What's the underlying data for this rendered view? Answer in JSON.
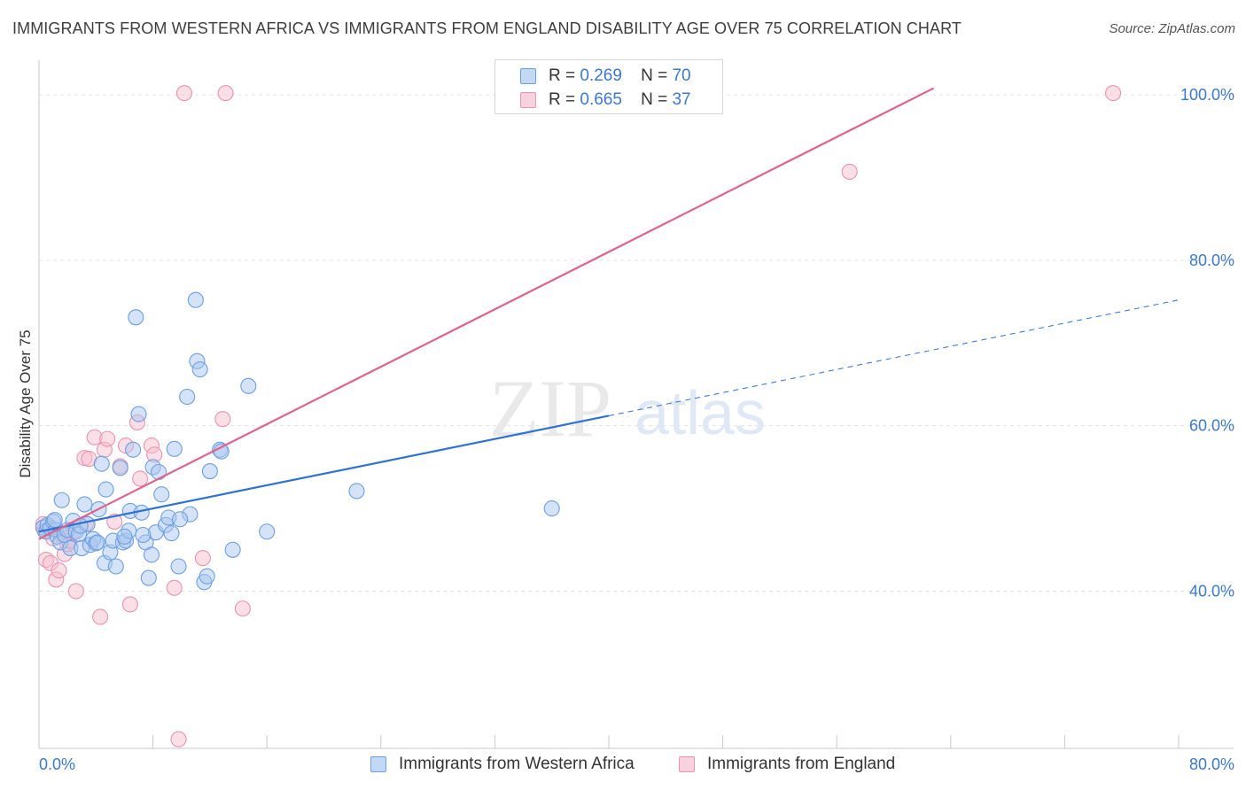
{
  "title": "IMMIGRANTS FROM WESTERN AFRICA VS IMMIGRANTS FROM ENGLAND DISABILITY AGE OVER 75 CORRELATION CHART",
  "source": "Source: ZipAtlas.com",
  "watermark": {
    "zip": "ZIP",
    "atlas": "atlas"
  },
  "legend": {
    "r_label": "R =",
    "n_label": "N =",
    "items": [
      {
        "r": "0.269",
        "n": "70"
      },
      {
        "r": "0.665",
        "n": "37"
      }
    ]
  },
  "colors": {
    "blue_fill": "#aac8ef",
    "blue_stroke": "#6d9fe0",
    "blue_line": "#2f72d4",
    "pink_fill": "#f6bfd0",
    "pink_stroke": "#e993b0",
    "pink_line": "#e0628e",
    "tick_label": "#3b78d1"
  },
  "chart_data": {
    "type": "scatter",
    "title": "IMMIGRANTS FROM WESTERN AFRICA VS IMMIGRANTS FROM ENGLAND DISABILITY AGE OVER 75 CORRELATION CHART",
    "xlabel": "",
    "ylabel": "Disability Age Over 75",
    "xlim": [
      0,
      80
    ],
    "ylim": [
      21,
      103
    ],
    "x_tick_labels": [
      "0.0%",
      "80.0%"
    ],
    "y_ticks": [
      40,
      60,
      80,
      100
    ],
    "y_tick_labels": [
      "40.0%",
      "60.0%",
      "80.0%",
      "100.0%"
    ],
    "series": [
      {
        "name": "Immigrants from Western Africa",
        "r": 0.269,
        "n": 70,
        "points": [
          [
            0.3,
            47.7
          ],
          [
            0.5,
            47.2
          ],
          [
            0.6,
            48.0
          ],
          [
            0.8,
            47.6
          ],
          [
            1.0,
            48.4
          ],
          [
            1.2,
            47.4
          ],
          [
            1.3,
            46.6
          ],
          [
            1.5,
            45.9
          ],
          [
            1.6,
            51.0
          ],
          [
            1.8,
            46.8
          ],
          [
            2.0,
            47.4
          ],
          [
            2.2,
            45.2
          ],
          [
            2.4,
            48.5
          ],
          [
            2.6,
            47.2
          ],
          [
            2.8,
            46.9
          ],
          [
            3.0,
            45.2
          ],
          [
            3.2,
            50.5
          ],
          [
            3.4,
            48.1
          ],
          [
            3.6,
            45.6
          ],
          [
            3.8,
            46.3
          ],
          [
            4.0,
            45.8
          ],
          [
            4.2,
            49.9
          ],
          [
            4.4,
            55.4
          ],
          [
            4.6,
            43.4
          ],
          [
            4.7,
            52.3
          ],
          [
            5.0,
            44.7
          ],
          [
            5.2,
            46.1
          ],
          [
            5.4,
            43.0
          ],
          [
            5.7,
            54.9
          ],
          [
            5.9,
            45.9
          ],
          [
            6.1,
            46.1
          ],
          [
            6.3,
            47.3
          ],
          [
            6.4,
            49.7
          ],
          [
            6.6,
            57.1
          ],
          [
            6.8,
            73.1
          ],
          [
            7.0,
            61.4
          ],
          [
            7.2,
            49.5
          ],
          [
            7.5,
            45.9
          ],
          [
            7.7,
            41.6
          ],
          [
            7.9,
            44.4
          ],
          [
            8.0,
            55.0
          ],
          [
            8.2,
            47.1
          ],
          [
            8.4,
            54.4
          ],
          [
            8.6,
            51.7
          ],
          [
            8.9,
            48.0
          ],
          [
            9.1,
            48.9
          ],
          [
            9.3,
            47.0
          ],
          [
            9.5,
            57.2
          ],
          [
            9.8,
            43.0
          ],
          [
            10.4,
            63.5
          ],
          [
            10.6,
            49.3
          ],
          [
            11.0,
            75.2
          ],
          [
            11.1,
            67.8
          ],
          [
            11.3,
            66.8
          ],
          [
            11.6,
            41.1
          ],
          [
            11.8,
            41.8
          ],
          [
            12.0,
            54.5
          ],
          [
            12.7,
            57.1
          ],
          [
            12.8,
            56.9
          ],
          [
            13.6,
            45.0
          ],
          [
            14.7,
            64.8
          ],
          [
            16.0,
            47.2
          ],
          [
            22.3,
            52.1
          ],
          [
            36.0,
            50.0
          ],
          [
            1.1,
            48.6
          ],
          [
            2.9,
            47.9
          ],
          [
            4.1,
            45.9
          ],
          [
            6.0,
            46.6
          ],
          [
            7.3,
            46.8
          ],
          [
            9.9,
            48.7
          ]
        ],
        "trend": {
          "x": [
            0,
            40
          ],
          "y": [
            47.2,
            61.2
          ],
          "dashed_to": [
            80,
            75.2
          ]
        }
      },
      {
        "name": "Immigrants from England",
        "r": 0.665,
        "n": 37,
        "points": [
          [
            0.3,
            48.1
          ],
          [
            0.4,
            47.3
          ],
          [
            0.5,
            43.8
          ],
          [
            0.8,
            43.4
          ],
          [
            1.0,
            46.4
          ],
          [
            1.2,
            41.4
          ],
          [
            1.4,
            42.5
          ],
          [
            1.6,
            46.8
          ],
          [
            1.8,
            44.5
          ],
          [
            2.0,
            45.7
          ],
          [
            2.1,
            46.1
          ],
          [
            2.4,
            47.1
          ],
          [
            2.6,
            40.0
          ],
          [
            3.2,
            56.1
          ],
          [
            3.3,
            48.2
          ],
          [
            3.5,
            56.0
          ],
          [
            3.9,
            58.6
          ],
          [
            4.3,
            36.9
          ],
          [
            4.6,
            57.1
          ],
          [
            4.8,
            58.4
          ],
          [
            5.3,
            48.4
          ],
          [
            5.7,
            55.1
          ],
          [
            6.1,
            57.6
          ],
          [
            6.4,
            38.4
          ],
          [
            6.9,
            60.4
          ],
          [
            7.1,
            53.6
          ],
          [
            7.9,
            57.6
          ],
          [
            8.1,
            56.5
          ],
          [
            9.5,
            40.4
          ],
          [
            9.8,
            22.1
          ],
          [
            10.2,
            100.2
          ],
          [
            11.5,
            44.0
          ],
          [
            12.9,
            60.8
          ],
          [
            14.3,
            37.9
          ],
          [
            13.1,
            100.2
          ],
          [
            56.9,
            90.7
          ],
          [
            75.4,
            100.2
          ]
        ],
        "trend": {
          "x": [
            0,
            62.8
          ],
          "y": [
            46.3,
            100.8
          ]
        }
      }
    ]
  }
}
